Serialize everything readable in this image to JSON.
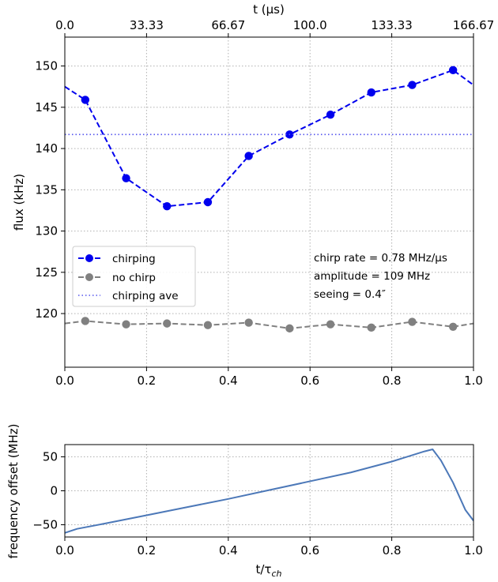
{
  "chart_data": [
    {
      "type": "line",
      "xlabel": "",
      "ylabel": "flux (kHz)",
      "top_xlabel": "t (μs)",
      "xlim": [
        0.0,
        1.0
      ],
      "ylim": [
        113.5,
        153.5
      ],
      "x_ticks": [
        "0.0",
        "0.2",
        "0.4",
        "0.6",
        "0.8",
        "1.0"
      ],
      "top_x_ticks": [
        "0.0",
        "33.33",
        "66.67",
        "100.0",
        "133.33",
        "166.67"
      ],
      "y_ticks": [
        "120",
        "125",
        "130",
        "135",
        "140",
        "145",
        "150"
      ],
      "grid": true,
      "legend_position": "center-left",
      "series": [
        {
          "name": "chirping",
          "color": "#0000ee",
          "style": "dashed-with-markers",
          "x": [
            0.0,
            0.05,
            0.15,
            0.25,
            0.35,
            0.45,
            0.55,
            0.65,
            0.75,
            0.85,
            0.95,
            1.0
          ],
          "y": [
            147.5,
            145.9,
            136.4,
            133.0,
            133.5,
            139.1,
            141.7,
            144.1,
            146.8,
            147.7,
            149.5,
            147.7
          ],
          "marker_x": [
            0.05,
            0.15,
            0.25,
            0.35,
            0.45,
            0.55,
            0.65,
            0.75,
            0.85,
            0.95
          ]
        },
        {
          "name": "no chirp",
          "color": "#808080",
          "style": "dashed-with-markers",
          "x": [
            0.0,
            0.05,
            0.15,
            0.25,
            0.35,
            0.45,
            0.55,
            0.65,
            0.75,
            0.85,
            0.95,
            1.0
          ],
          "y": [
            118.8,
            119.1,
            118.7,
            118.8,
            118.6,
            118.9,
            118.2,
            118.7,
            118.3,
            119.0,
            118.4,
            118.8
          ],
          "marker_x": [
            0.05,
            0.15,
            0.25,
            0.35,
            0.45,
            0.55,
            0.65,
            0.75,
            0.85,
            0.95
          ]
        },
        {
          "name": "chirping ave",
          "color": "#5555ee",
          "style": "dotted",
          "x": [
            0.0,
            1.0
          ],
          "y": [
            141.7,
            141.7
          ]
        }
      ],
      "annotations": [
        "chirp rate = 0.78 MHz/μs",
        "amplitude = 109 MHz",
        "seeing = 0.4″"
      ]
    },
    {
      "type": "line",
      "xlabel": "t/τ",
      "xlabel_subscript": "ch",
      "ylabel": "frequency offset (MHz)",
      "xlim": [
        0.0,
        1.0
      ],
      "ylim": [
        -68,
        68
      ],
      "x_ticks": [
        "0.0",
        "0.2",
        "0.4",
        "0.6",
        "0.8",
        "1.0"
      ],
      "y_ticks": [
        "−50",
        "0",
        "50"
      ],
      "grid": true,
      "series": [
        {
          "name": "",
          "color": "#4c78b8",
          "style": "solid",
          "x": [
            0.0,
            0.03,
            0.1,
            0.2,
            0.3,
            0.4,
            0.5,
            0.6,
            0.7,
            0.8,
            0.88,
            0.9,
            0.92,
            0.95,
            0.98,
            1.0
          ],
          "y": [
            -62,
            -56,
            -48,
            -36,
            -24,
            -12,
            1,
            14,
            27,
            43,
            58,
            61,
            45,
            12,
            -28,
            -44
          ]
        }
      ]
    }
  ]
}
